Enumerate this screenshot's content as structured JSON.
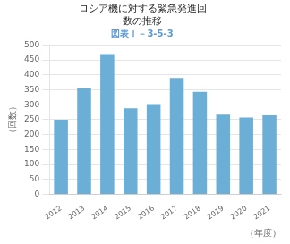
{
  "chart_data": {
    "type": "bar",
    "title": "ロシア機に対する緊急発進回\n数の推移",
    "subtitle": "図表Ｉ－3-5-3",
    "xlabel": "（年度）",
    "ylabel": "（回数）",
    "categories": [
      "2012",
      "2013",
      "2014",
      "2015",
      "2016",
      "2017",
      "2018",
      "2019",
      "2020",
      "2021"
    ],
    "values": [
      250,
      355,
      470,
      288,
      302,
      390,
      343,
      267,
      257,
      265
    ],
    "color": "#6baed6",
    "ylim": [
      0,
      500
    ],
    "yticks": [
      0,
      50,
      100,
      150,
      200,
      250,
      300,
      350,
      400,
      450,
      500
    ],
    "grid": true
  }
}
